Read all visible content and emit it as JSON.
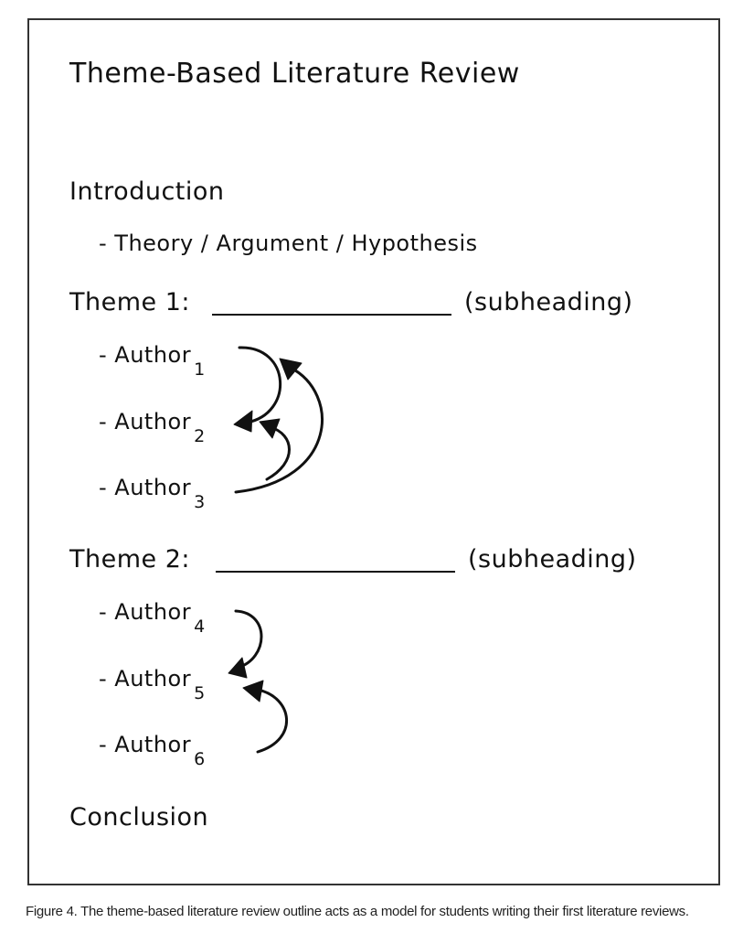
{
  "outline": {
    "title": "Theme-Based Literature Review",
    "introduction": {
      "heading": "Introduction",
      "detail": "- Theory / Argument / Hypothesis"
    },
    "themes": [
      {
        "heading": "Theme 1:",
        "subheading_note": "(subheading)",
        "authors": [
          {
            "label": "- Author",
            "number": "1"
          },
          {
            "label": "- Author",
            "number": "2"
          },
          {
            "label": "- Author",
            "number": "3"
          }
        ]
      },
      {
        "heading": "Theme 2:",
        "subheading_note": "(subheading)",
        "authors": [
          {
            "label": "- Author",
            "number": "4"
          },
          {
            "label": "- Author",
            "number": "5"
          },
          {
            "label": "- Author",
            "number": "6"
          }
        ]
      }
    ],
    "conclusion": "Conclusion"
  },
  "caption": "Figure 4. The theme-based literature review outline acts as a model for students writing their first literature reviews.",
  "colors": {
    "ink": "#111111",
    "frame": "#333333",
    "background": "#ffffff"
  }
}
